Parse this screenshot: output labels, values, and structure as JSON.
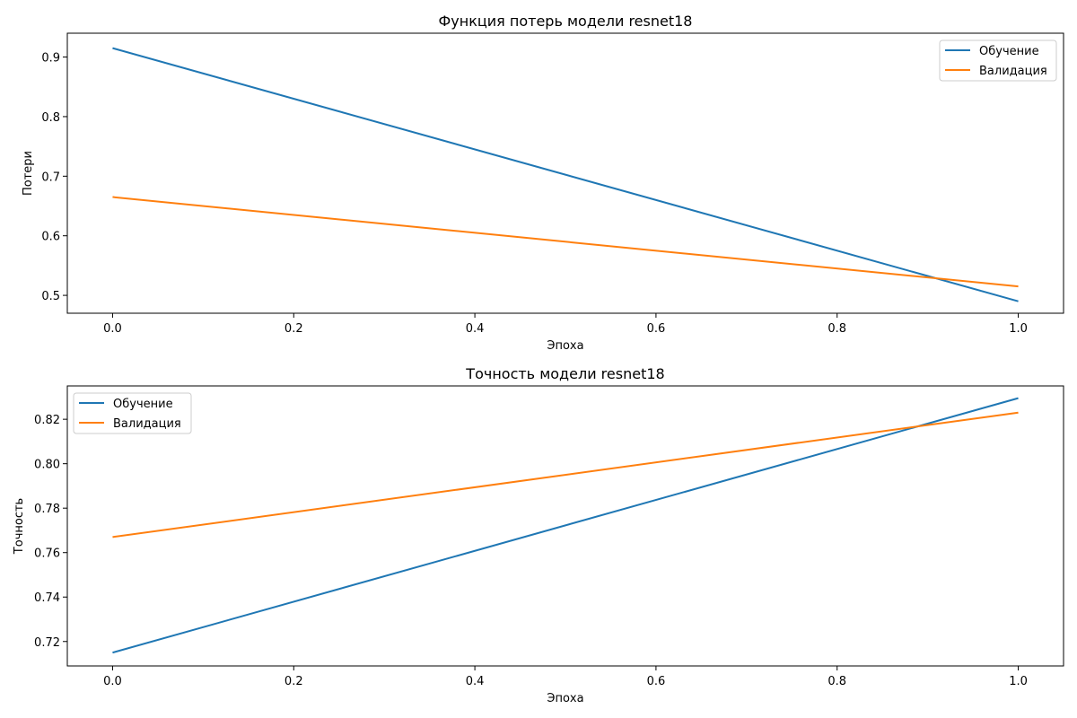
{
  "chart_data": [
    {
      "type": "line",
      "title": "Функция потерь модели resnet18",
      "xlabel": "Эпоха",
      "ylabel": "Потери",
      "xlim": [
        -0.05,
        1.05
      ],
      "ylim": [
        0.47,
        0.94
      ],
      "xticks": [
        0.0,
        0.2,
        0.4,
        0.6,
        0.8,
        1.0
      ],
      "xtick_labels": [
        "0.0",
        "0.2",
        "0.4",
        "0.6",
        "0.8",
        "1.0"
      ],
      "yticks": [
        0.5,
        0.6,
        0.7,
        0.8,
        0.9
      ],
      "ytick_labels": [
        "0.5",
        "0.6",
        "0.7",
        "0.8",
        "0.9"
      ],
      "grid": false,
      "legend_position": "top-right",
      "series": [
        {
          "name": "Обучение",
          "color": "#1f77b4",
          "x": [
            0,
            1
          ],
          "y": [
            0.915,
            0.49
          ]
        },
        {
          "name": "Валидация",
          "color": "#ff7f0e",
          "x": [
            0,
            1
          ],
          "y": [
            0.665,
            0.515
          ]
        }
      ]
    },
    {
      "type": "line",
      "title": "Точность модели resnet18",
      "xlabel": "Эпоха",
      "ylabel": "Точность",
      "xlim": [
        -0.05,
        1.05
      ],
      "ylim": [
        0.709,
        0.835
      ],
      "xticks": [
        0.0,
        0.2,
        0.4,
        0.6,
        0.8,
        1.0
      ],
      "xtick_labels": [
        "0.0",
        "0.2",
        "0.4",
        "0.6",
        "0.8",
        "1.0"
      ],
      "yticks": [
        0.72,
        0.74,
        0.76,
        0.78,
        0.8,
        0.82
      ],
      "ytick_labels": [
        "0.72",
        "0.74",
        "0.76",
        "0.78",
        "0.80",
        "0.82"
      ],
      "grid": false,
      "legend_position": "top-left",
      "series": [
        {
          "name": "Обучение",
          "color": "#1f77b4",
          "x": [
            0,
            1
          ],
          "y": [
            0.715,
            0.8295
          ]
        },
        {
          "name": "Валидация",
          "color": "#ff7f0e",
          "x": [
            0,
            1
          ],
          "y": [
            0.767,
            0.823
          ]
        }
      ]
    }
  ]
}
